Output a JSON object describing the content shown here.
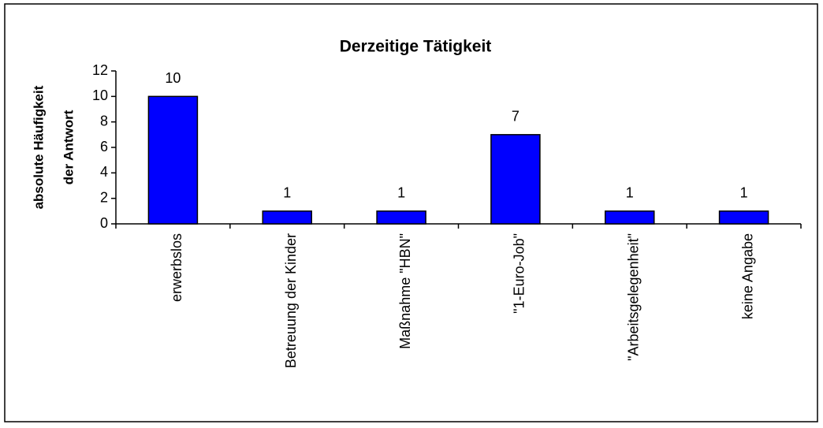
{
  "chart_data": {
    "type": "bar",
    "title": "Derzeitige Tätigkeit",
    "y_label": [
      "absolute Häufigkeit",
      "der Antwort"
    ],
    "categories": [
      "erwerbslos",
      "Betreuung der Kinder",
      "Maßnahme \"HBN\"",
      "\"1-Euro-Job\"",
      "\"Arbeitsgelegenheit\"",
      "keine Angabe"
    ],
    "values": [
      10,
      1,
      1,
      7,
      1,
      1
    ],
    "color": "#0000ff",
    "ylim": [
      0,
      12
    ],
    "yticks": [
      0,
      2,
      4,
      6,
      8,
      10,
      12
    ],
    "grid": false,
    "data_labels": true
  }
}
